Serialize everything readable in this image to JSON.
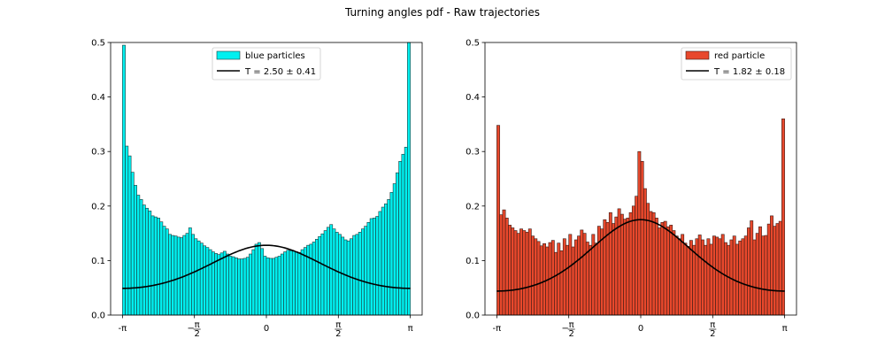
{
  "figure": {
    "title": "Turning angles pdf - Raw trajectories"
  },
  "chart_data": [
    {
      "type": "bar",
      "xlim": [
        -3.4,
        3.4
      ],
      "ylim": [
        0,
        0.5
      ],
      "x_ticks": [
        -3.14159,
        -1.5708,
        0,
        1.5708,
        3.14159
      ],
      "x_tick_labels": [
        "-π",
        "-π/2",
        "0",
        "π/2",
        "π"
      ],
      "y_ticks": [
        0.0,
        0.1,
        0.2,
        0.3,
        0.4,
        0.5
      ],
      "y_tick_labels": [
        "0.0",
        "0.1",
        "0.2",
        "0.3",
        "0.4",
        "0.5"
      ],
      "bins": 100,
      "bin_range": [
        -3.14159,
        3.14159
      ],
      "histogram": {
        "name": "blue particles",
        "color": "#00f0f0",
        "edge_color": "#1a3a3a",
        "values": [
          0.495,
          0.31,
          0.292,
          0.262,
          0.238,
          0.22,
          0.212,
          0.202,
          0.196,
          0.191,
          0.182,
          0.18,
          0.178,
          0.171,
          0.163,
          0.158,
          0.148,
          0.146,
          0.145,
          0.143,
          0.142,
          0.146,
          0.15,
          0.16,
          0.148,
          0.14,
          0.136,
          0.132,
          0.127,
          0.124,
          0.12,
          0.116,
          0.113,
          0.111,
          0.114,
          0.117,
          0.112,
          0.108,
          0.107,
          0.105,
          0.103,
          0.103,
          0.104,
          0.106,
          0.112,
          0.12,
          0.13,
          0.133,
          0.122,
          0.108,
          0.105,
          0.104,
          0.104,
          0.106,
          0.108,
          0.112,
          0.116,
          0.119,
          0.118,
          0.117,
          0.116,
          0.115,
          0.12,
          0.124,
          0.128,
          0.13,
          0.134,
          0.139,
          0.144,
          0.149,
          0.155,
          0.161,
          0.166,
          0.158,
          0.152,
          0.148,
          0.143,
          0.138,
          0.136,
          0.14,
          0.146,
          0.148,
          0.152,
          0.158,
          0.163,
          0.17,
          0.177,
          0.178,
          0.181,
          0.19,
          0.198,
          0.204,
          0.212,
          0.225,
          0.241,
          0.261,
          0.282,
          0.295,
          0.308,
          0.5
        ]
      },
      "curve": {
        "name": "$T = 2.50 \\pm 0.41$",
        "legend_label": "T = 2.50 ± 0.41",
        "color": "#000000",
        "x_range": [
          -3.14159,
          3.14159
        ],
        "y_at_center": 0.128,
        "y_at_edges": 0.049
      },
      "legend": {
        "position": "top-center"
      }
    },
    {
      "type": "bar",
      "xlim": [
        -3.4,
        3.4
      ],
      "ylim": [
        0,
        0.5
      ],
      "x_ticks": [
        -3.14159,
        -1.5708,
        0,
        1.5708,
        3.14159
      ],
      "x_tick_labels": [
        "-π",
        "-π/2",
        "0",
        "π/2",
        "π"
      ],
      "y_ticks": [
        0.0,
        0.1,
        0.2,
        0.3,
        0.4,
        0.5
      ],
      "y_tick_labels": [
        "0.0",
        "0.1",
        "0.2",
        "0.3",
        "0.4",
        "0.5"
      ],
      "bins": 100,
      "bin_range": [
        -3.14159,
        3.14159
      ],
      "histogram": {
        "name": "red particle",
        "color": "#e8482c",
        "edge_color": "#3a1a14",
        "values": [
          0.348,
          0.184,
          0.193,
          0.178,
          0.165,
          0.16,
          0.155,
          0.15,
          0.158,
          0.155,
          0.152,
          0.158,
          0.145,
          0.14,
          0.135,
          0.127,
          0.131,
          0.125,
          0.133,
          0.137,
          0.115,
          0.132,
          0.118,
          0.14,
          0.128,
          0.148,
          0.125,
          0.138,
          0.145,
          0.156,
          0.15,
          0.134,
          0.128,
          0.148,
          0.132,
          0.163,
          0.158,
          0.175,
          0.17,
          0.188,
          0.168,
          0.18,
          0.195,
          0.185,
          0.176,
          0.178,
          0.188,
          0.2,
          0.218,
          0.3,
          0.282,
          0.232,
          0.205,
          0.19,
          0.188,
          0.178,
          0.16,
          0.17,
          0.172,
          0.162,
          0.165,
          0.155,
          0.145,
          0.14,
          0.148,
          0.132,
          0.126,
          0.137,
          0.128,
          0.14,
          0.147,
          0.138,
          0.128,
          0.14,
          0.13,
          0.145,
          0.143,
          0.14,
          0.148,
          0.133,
          0.128,
          0.138,
          0.145,
          0.13,
          0.136,
          0.14,
          0.145,
          0.16,
          0.173,
          0.138,
          0.15,
          0.162,
          0.145,
          0.146,
          0.167,
          0.182,
          0.163,
          0.168,
          0.172,
          0.36
        ]
      },
      "curve": {
        "name": "$T = 1.82 \\pm 0.18$",
        "legend_label": "T = 1.82 ± 0.18",
        "color": "#000000",
        "x_range": [
          -3.14159,
          3.14159
        ],
        "y_at_center": 0.175,
        "y_at_edges": 0.044
      },
      "legend": {
        "position": "top-right"
      }
    }
  ]
}
